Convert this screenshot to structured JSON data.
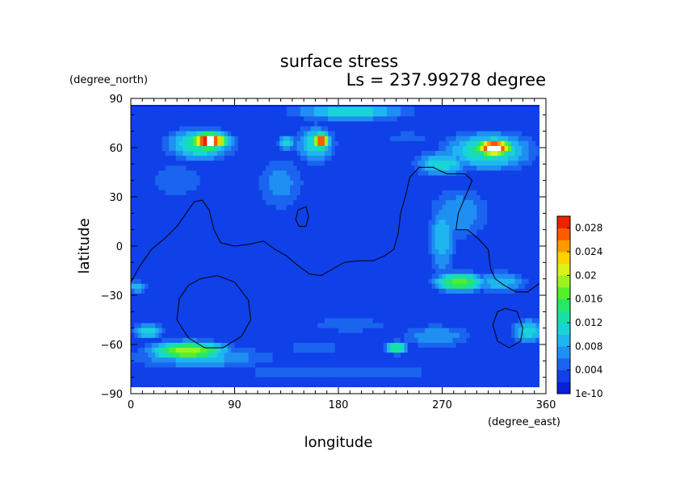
{
  "chart_data": {
    "type": "heatmap",
    "title": "surface stress",
    "subtitle": "Ls = 237.99278 degree",
    "xlabel": "longitude",
    "ylabel": "latitude",
    "x_units": "(degree_east)",
    "y_units": "(degree_north)",
    "xlim": [
      0,
      360
    ],
    "ylim": [
      -90,
      90
    ],
    "x_ticks": [
      "0",
      "90",
      "180",
      "270",
      "360"
    ],
    "y_ticks": [
      "90",
      "60",
      "30",
      "0",
      "−30",
      "−60",
      "−90"
    ],
    "colorbar": {
      "range": [
        0,
        0.03
      ],
      "tick_labels": [
        "1e-10",
        "0.004",
        "0.008",
        "0.012",
        "0.016",
        "0.02",
        "0.024",
        "0.028"
      ],
      "tick_values": [
        0,
        0.004,
        0.008,
        0.012,
        0.016,
        0.02,
        0.024,
        0.028
      ],
      "colors": [
        "#0a1fd8",
        "#1040e8",
        "#1a64ef",
        "#1f8ff2",
        "#1fb6f0",
        "#19d4d6",
        "#18e0a4",
        "#26e865",
        "#55ee2c",
        "#9af21f",
        "#d9f21a",
        "#ffd200",
        "#ff9a00",
        "#ff5a00",
        "#ec2200"
      ],
      "over_color": "#ffffff"
    },
    "grid": false,
    "background_value": 0.002,
    "blobs": [
      {
        "lon": 68,
        "lat": 64,
        "wlon": 16,
        "wlat": 5,
        "value": 0.034
      },
      {
        "lon": 60,
        "lat": 62,
        "wlon": 30,
        "wlat": 10,
        "value": 0.014
      },
      {
        "lon": 315,
        "lat": 60,
        "wlon": 16,
        "wlat": 5,
        "value": 0.034
      },
      {
        "lon": 310,
        "lat": 58,
        "wlon": 40,
        "wlat": 12,
        "value": 0.014
      },
      {
        "lon": 165,
        "lat": 64,
        "wlon": 7,
        "wlat": 5,
        "value": 0.03
      },
      {
        "lon": 160,
        "lat": 62,
        "wlon": 18,
        "wlat": 12,
        "value": 0.012
      },
      {
        "lon": 135,
        "lat": 63,
        "wlon": 8,
        "wlat": 5,
        "value": 0.012
      },
      {
        "lon": 190,
        "lat": 82,
        "wlon": 55,
        "wlat": 6,
        "value": 0.012
      },
      {
        "lon": 270,
        "lat": 50,
        "wlon": 25,
        "wlat": 8,
        "value": 0.012
      },
      {
        "lon": 130,
        "lat": 38,
        "wlon": 25,
        "wlat": 20,
        "value": 0.007
      },
      {
        "lon": 40,
        "lat": 40,
        "wlon": 40,
        "wlat": 18,
        "value": 0.005
      },
      {
        "lon": 270,
        "lat": 5,
        "wlon": 12,
        "wlat": 25,
        "value": 0.01
      },
      {
        "lon": 285,
        "lat": 20,
        "wlon": 30,
        "wlat": 18,
        "value": 0.008
      },
      {
        "lon": 285,
        "lat": -22,
        "wlon": 22,
        "wlat": 6,
        "value": 0.018
      },
      {
        "lon": 320,
        "lat": -22,
        "wlon": 25,
        "wlat": 7,
        "value": 0.01
      },
      {
        "lon": 50,
        "lat": -64,
        "wlon": 35,
        "wlat": 6,
        "value": 0.02
      },
      {
        "lon": 60,
        "lat": -68,
        "wlon": 70,
        "wlat": 8,
        "value": 0.009
      },
      {
        "lon": 15,
        "lat": -52,
        "wlon": 14,
        "wlat": 5,
        "value": 0.012
      },
      {
        "lon": 230,
        "lat": -62,
        "wlon": 10,
        "wlat": 4,
        "value": 0.016
      },
      {
        "lon": 265,
        "lat": -55,
        "wlon": 35,
        "wlat": 8,
        "value": 0.008
      },
      {
        "lon": 345,
        "lat": -52,
        "wlon": 15,
        "wlat": 8,
        "value": 0.012
      },
      {
        "lon": 190,
        "lat": -48,
        "wlon": 60,
        "wlat": 8,
        "value": 0.005
      },
      {
        "lon": 160,
        "lat": -62,
        "wlon": 30,
        "wlat": 6,
        "value": 0.006
      },
      {
        "lon": 180,
        "lat": -77,
        "wlon": 180,
        "wlat": 3,
        "value": 0.006
      },
      {
        "lon": 5,
        "lat": -25,
        "wlon": 10,
        "wlat": 4,
        "value": 0.01
      },
      {
        "lon": 240,
        "lat": 66,
        "wlon": 30,
        "wlat": 6,
        "value": 0.005
      }
    ],
    "contours": [
      [
        [
          0,
          -22
        ],
        [
          8,
          -12
        ],
        [
          18,
          -2
        ],
        [
          30,
          5
        ],
        [
          40,
          12
        ],
        [
          48,
          20
        ],
        [
          55,
          27
        ],
        [
          62,
          28
        ],
        [
          68,
          22
        ],
        [
          72,
          10
        ],
        [
          78,
          2
        ],
        [
          90,
          0
        ],
        [
          102,
          1
        ],
        [
          115,
          3
        ],
        [
          125,
          -2
        ],
        [
          135,
          -6
        ],
        [
          145,
          -12
        ],
        [
          155,
          -17
        ],
        [
          165,
          -18
        ],
        [
          175,
          -14
        ],
        [
          185,
          -10
        ],
        [
          198,
          -9
        ],
        [
          210,
          -9
        ],
        [
          220,
          -6
        ],
        [
          228,
          -2
        ],
        [
          232,
          8
        ],
        [
          234,
          20
        ],
        [
          238,
          30
        ],
        [
          242,
          42
        ],
        [
          250,
          48
        ],
        [
          262,
          48
        ],
        [
          274,
          44
        ],
        [
          290,
          44
        ],
        [
          296,
          40
        ],
        [
          290,
          30
        ],
        [
          284,
          20
        ],
        [
          282,
          10
        ],
        [
          292,
          10
        ],
        [
          302,
          4
        ],
        [
          310,
          -2
        ],
        [
          312,
          -14
        ],
        [
          316,
          -20
        ],
        [
          324,
          -24
        ],
        [
          334,
          -28
        ],
        [
          344,
          -28
        ],
        [
          352,
          -24
        ],
        [
          360,
          -20
        ]
      ],
      [
        [
          145,
          22
        ],
        [
          152,
          24
        ],
        [
          154,
          18
        ],
        [
          152,
          12
        ],
        [
          146,
          12
        ],
        [
          143,
          16
        ],
        [
          145,
          22
        ]
      ],
      [
        [
          60,
          -20
        ],
        [
          75,
          -18
        ],
        [
          90,
          -22
        ],
        [
          102,
          -33
        ],
        [
          104,
          -45
        ],
        [
          96,
          -55
        ],
        [
          80,
          -62
        ],
        [
          64,
          -62
        ],
        [
          50,
          -56
        ],
        [
          40,
          -45
        ],
        [
          42,
          -32
        ],
        [
          50,
          -24
        ],
        [
          60,
          -20
        ]
      ],
      [
        [
          325,
          -38
        ],
        [
          335,
          -40
        ],
        [
          340,
          -50
        ],
        [
          338,
          -58
        ],
        [
          328,
          -62
        ],
        [
          318,
          -58
        ],
        [
          314,
          -48
        ],
        [
          318,
          -40
        ],
        [
          325,
          -38
        ]
      ]
    ]
  }
}
